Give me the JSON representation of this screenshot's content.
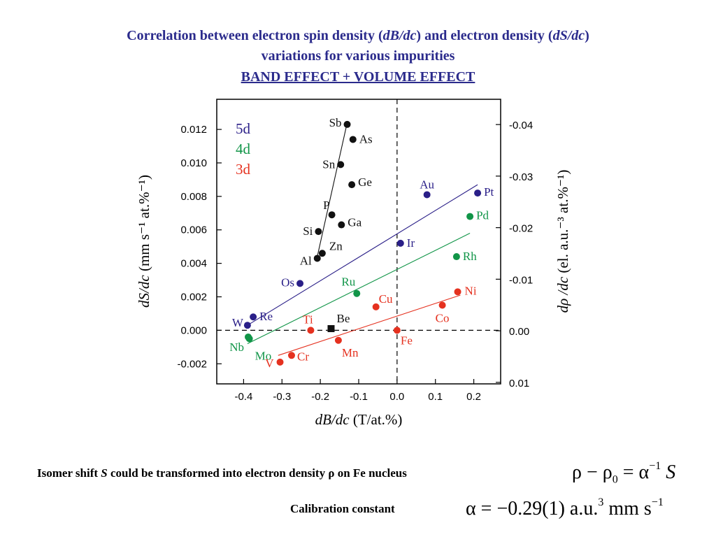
{
  "title": {
    "line1_a": "Correlation between electron spin density (",
    "line1_b": "dB/dc",
    "line1_c": ") and electron density (",
    "line1_d": "dS/dc",
    "line1_e": ")",
    "line2": "variations for various impurities",
    "line3": "BAND EFFECT + VOLUME EFFECT"
  },
  "colors": {
    "title": "#2b2b8c",
    "series_5d": "#2a1f88",
    "series_4d": "#119548",
    "series_3d": "#e5311f",
    "sp": "#111111"
  },
  "chart_data": {
    "type": "scatter",
    "xlabel_italic": "dB/dc",
    "xlabel_rest": " (T/at.%)",
    "ylabel_italic": "dS/dc",
    "ylabel_rest": " (mm s⁻¹ at.%⁻¹)",
    "y2label_italic": "dρ /dc",
    "y2label_rest": " (el. a.u.⁻³ at.%⁻¹)",
    "xlim": [
      -0.47,
      0.27
    ],
    "ylim": [
      -0.0032,
      0.0138
    ],
    "x_ticks": [
      "-0.4",
      "-0.3",
      "-0.2",
      "-0.1",
      "0.0",
      "0.1",
      "0.2"
    ],
    "x_tick_values": [
      -0.4,
      -0.3,
      -0.2,
      -0.1,
      0.0,
      0.1,
      0.2
    ],
    "y_ticks": [
      "0.012",
      "0.010",
      "0.008",
      "0.006",
      "0.004",
      "0.002",
      "0.000",
      "-0.002"
    ],
    "y_tick_values": [
      0.012,
      0.01,
      0.008,
      0.006,
      0.004,
      0.002,
      0.0,
      -0.002
    ],
    "y2_ticks": [
      "-0.04",
      "-0.03",
      "-0.02",
      "-0.01",
      "0.00",
      "0.01"
    ],
    "y2_tick_values": [
      -0.04,
      -0.03,
      -0.02,
      -0.01,
      0.0,
      0.01
    ],
    "y2_lim": [
      0.0103,
      -0.0449
    ],
    "legend": {
      "placement": "top-left",
      "entries": [
        {
          "label": "5d",
          "color": "#2a1f88"
        },
        {
          "label": "4d",
          "color": "#119548"
        },
        {
          "label": "3d",
          "color": "#e5311f"
        }
      ]
    },
    "reference_lines": {
      "x": 0.0,
      "y": 0.0,
      "style": "dashed"
    },
    "series": [
      {
        "name": "sp",
        "color": "#111111",
        "points": [
          {
            "label": "Sb",
            "x": -0.13,
            "y": 0.0123
          },
          {
            "label": "As",
            "x": -0.115,
            "y": 0.0114
          },
          {
            "label": "Sn",
            "x": -0.147,
            "y": 0.0099
          },
          {
            "label": "Ge",
            "x": -0.118,
            "y": 0.0087
          },
          {
            "label": "P",
            "x": -0.17,
            "y": 0.0069
          },
          {
            "label": "Ga",
            "x": -0.145,
            "y": 0.0063
          },
          {
            "label": "Si",
            "x": -0.205,
            "y": 0.0059
          },
          {
            "label": "Zn",
            "x": -0.195,
            "y": 0.0046
          },
          {
            "label": "Al",
            "x": -0.208,
            "y": 0.0043
          }
        ],
        "fit": [
          [
            -0.21,
            0.0042
          ],
          [
            -0.13,
            0.0124
          ]
        ]
      },
      {
        "name": "5d",
        "color": "#2a1f88",
        "points": [
          {
            "label": "Au",
            "x": 0.078,
            "y": 0.0081
          },
          {
            "label": "Pt",
            "x": 0.21,
            "y": 0.0082
          },
          {
            "label": "Ir",
            "x": 0.009,
            "y": 0.0052
          },
          {
            "label": "Os",
            "x": -0.253,
            "y": 0.0028
          },
          {
            "label": "Re",
            "x": -0.375,
            "y": 0.0008
          },
          {
            "label": "W",
            "x": -0.39,
            "y": 0.0003
          }
        ],
        "fit": [
          [
            -0.39,
            0.0003
          ],
          [
            0.21,
            0.0087
          ]
        ]
      },
      {
        "name": "4d",
        "color": "#119548",
        "points": [
          {
            "label": "Pd",
            "x": 0.19,
            "y": 0.0068
          },
          {
            "label": "Rh",
            "x": 0.155,
            "y": 0.0044
          },
          {
            "label": "Ru",
            "x": -0.105,
            "y": 0.0022
          },
          {
            "label": "Mo",
            "x": -0.385,
            "y": -0.0005
          },
          {
            "label": "Nb",
            "x": -0.388,
            "y": -0.0004
          }
        ],
        "fit": [
          [
            -0.39,
            -0.0008
          ],
          [
            0.19,
            0.0058
          ]
        ]
      },
      {
        "name": "3d",
        "color": "#e5311f",
        "points": [
          {
            "label": "Ni",
            "x": 0.158,
            "y": 0.0023
          },
          {
            "label": "Co",
            "x": 0.118,
            "y": 0.0015
          },
          {
            "label": "Cu",
            "x": -0.055,
            "y": 0.0014
          },
          {
            "label": "Ti",
            "x": -0.225,
            "y": 0.0
          },
          {
            "label": "Fe",
            "x": 0.0,
            "y": 0.0
          },
          {
            "label": "Mn",
            "x": -0.153,
            "y": -0.0006
          },
          {
            "label": "Cr",
            "x": -0.275,
            "y": -0.0015
          },
          {
            "label": "V",
            "x": -0.305,
            "y": -0.0019
          }
        ],
        "fit": [
          [
            -0.31,
            -0.0015
          ],
          [
            0.165,
            0.0021
          ]
        ]
      },
      {
        "name": "Be",
        "color": "#111111",
        "marker": "square",
        "points": [
          {
            "label": "Be",
            "x": -0.172,
            "y": 0.0001
          }
        ]
      }
    ]
  },
  "captions": {
    "isomer_a": "Isomer shift ",
    "isomer_s": "S",
    "isomer_b": " could be transformed into electron density ρ on Fe nucleus",
    "calibration": "Calibration constant"
  },
  "formulas": {
    "f1_rho": "ρ − ρ",
    "f1_sub": "0",
    "f1_mid": " = α",
    "f1_sup": "−1",
    "f1_s": " S",
    "f2_main": "α = −0.29(1) a.u.",
    "f2_sup1": "3",
    "f2_mid": " mm s",
    "f2_sup2": "−1"
  }
}
